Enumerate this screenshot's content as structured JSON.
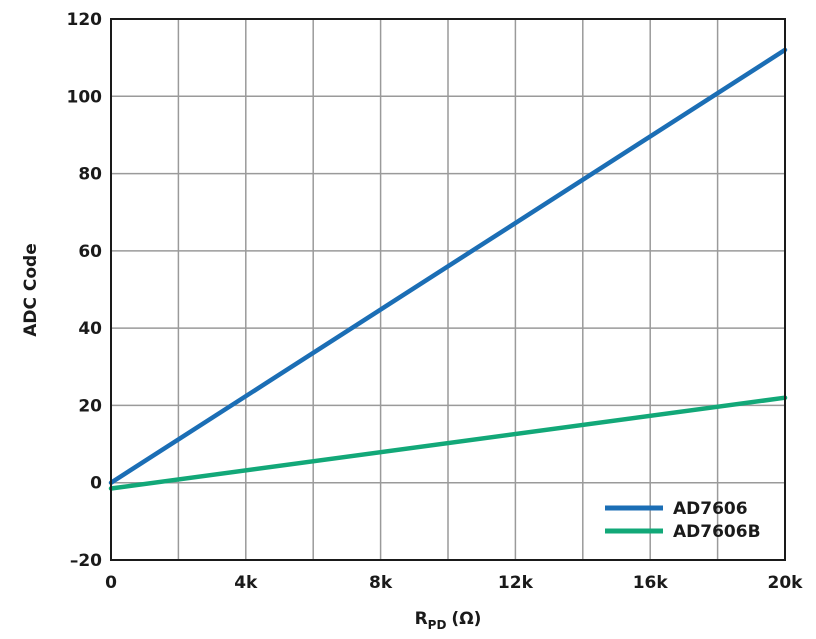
{
  "chart_data": {
    "type": "line",
    "xlabel_main": "R",
    "xlabel_sub": "PD",
    "xlabel_unit": "(Ω)",
    "ylabel": "ADC Code",
    "xlim": [
      0,
      20000
    ],
    "ylim": [
      -20,
      120
    ],
    "grid": true,
    "legend_position": "bottom-right",
    "x_ticks": [
      {
        "value": 0,
        "label": "0"
      },
      {
        "value": 4000,
        "label": "4k"
      },
      {
        "value": 8000,
        "label": "8k"
      },
      {
        "value": 12000,
        "label": "12k"
      },
      {
        "value": 16000,
        "label": "16k"
      },
      {
        "value": 20000,
        "label": "20k"
      }
    ],
    "x_minor_grid": [
      2000,
      6000,
      10000,
      14000,
      18000
    ],
    "y_ticks": [
      {
        "value": -20,
        "label": "–20"
      },
      {
        "value": 0,
        "label": "0"
      },
      {
        "value": 20,
        "label": "20"
      },
      {
        "value": 40,
        "label": "40"
      },
      {
        "value": 60,
        "label": "60"
      },
      {
        "value": 80,
        "label": "80"
      },
      {
        "value": 100,
        "label": "100"
      },
      {
        "value": 120,
        "label": "120"
      }
    ],
    "series": [
      {
        "name": "AD7606",
        "color": "#1b6eb5",
        "x": [
          0,
          20000
        ],
        "y": [
          0,
          112
        ]
      },
      {
        "name": "AD7606B",
        "color": "#12a878",
        "x": [
          0,
          20000
        ],
        "y": [
          -1.5,
          22
        ]
      }
    ]
  }
}
